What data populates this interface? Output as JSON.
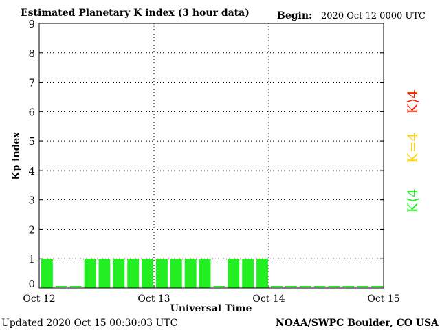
{
  "header": {
    "title": "Estimated Planetary K index (3 hour data)",
    "begin_label": "Begin:",
    "begin_value": "2020 Oct 12 0000 UTC"
  },
  "footer": {
    "updated": "Updated 2020 Oct 15 00:30:03 UTC",
    "source": "NOAA/SWPC Boulder, CO USA"
  },
  "legend": {
    "high": {
      "label": "K⟩4",
      "color": "#ff2000"
    },
    "equal": {
      "label": "K=4",
      "color": "#ffd700"
    },
    "low": {
      "label": "K⟨4",
      "color": "#22ee22"
    }
  },
  "chart_data": {
    "type": "bar",
    "title": "Estimated Planetary K index (3 hour data)",
    "xlabel": "Universal Time",
    "ylabel": "Kp index",
    "ylim": [
      0,
      9
    ],
    "yticks": [
      0,
      1,
      2,
      3,
      4,
      5,
      6,
      7,
      8,
      9
    ],
    "x_tick_labels": [
      "Oct 12",
      "Oct 13",
      "Oct 14",
      "Oct 15"
    ],
    "categories": [
      "Oct 12 00",
      "Oct 12 03",
      "Oct 12 06",
      "Oct 12 09",
      "Oct 12 12",
      "Oct 12 15",
      "Oct 12 18",
      "Oct 12 21",
      "Oct 13 00",
      "Oct 13 03",
      "Oct 13 06",
      "Oct 13 09",
      "Oct 13 12",
      "Oct 13 15",
      "Oct 13 18",
      "Oct 13 21",
      "Oct 14 00",
      "Oct 14 03",
      "Oct 14 06",
      "Oct 14 09",
      "Oct 14 12",
      "Oct 14 15",
      "Oct 14 18",
      "Oct 14 21"
    ],
    "values": [
      1,
      0,
      0,
      1,
      1,
      1,
      1,
      1,
      1,
      1,
      1,
      1,
      0,
      1,
      1,
      1,
      0,
      0,
      0,
      0,
      0,
      0,
      0,
      0
    ],
    "bar_color": "#22ee22",
    "grid": true
  }
}
